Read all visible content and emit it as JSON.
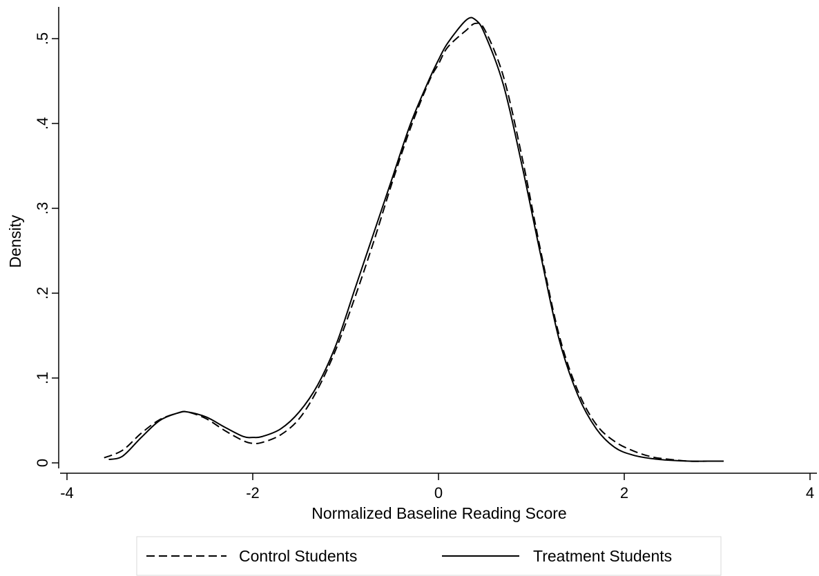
{
  "chart_data": {
    "type": "line",
    "title": "",
    "xlabel": "Normalized Baseline Reading Score",
    "ylabel": "Density",
    "xlim": [
      -4,
      4
    ],
    "ylim": [
      0,
      0.52
    ],
    "x_ticks": [
      -4,
      -2,
      0,
      2,
      4
    ],
    "x_tick_labels": [
      "-4",
      "-2",
      "0",
      "2",
      "4"
    ],
    "y_ticks": [
      0,
      0.1,
      0.2,
      0.3,
      0.4,
      0.5
    ],
    "y_tick_labels": [
      "0",
      ".1",
      ".2",
      ".3",
      ".4",
      ".5"
    ],
    "grid": false,
    "legend_position": "bottom",
    "series": [
      {
        "name": "Control Students",
        "style": "dashed",
        "color": "#000000",
        "x": [
          -3.6,
          -3.4,
          -3.2,
          -3.0,
          -2.8,
          -2.7,
          -2.5,
          -2.3,
          -2.1,
          -2.0,
          -1.9,
          -1.7,
          -1.5,
          -1.3,
          -1.1,
          -0.9,
          -0.7,
          -0.5,
          -0.3,
          -0.1,
          0.0,
          0.1,
          0.3,
          0.4,
          0.5,
          0.7,
          0.9,
          1.1,
          1.3,
          1.5,
          1.7,
          1.9,
          2.1,
          2.3,
          2.5,
          2.7,
          2.9,
          3.1
        ],
        "y": [
          0.006,
          0.015,
          0.035,
          0.051,
          0.059,
          0.06,
          0.052,
          0.038,
          0.026,
          0.023,
          0.024,
          0.033,
          0.052,
          0.087,
          0.135,
          0.195,
          0.26,
          0.33,
          0.395,
          0.45,
          0.47,
          0.49,
          0.51,
          0.518,
          0.51,
          0.455,
          0.36,
          0.25,
          0.15,
          0.085,
          0.045,
          0.025,
          0.014,
          0.007,
          0.004,
          0.002,
          0.002,
          0.002
        ]
      },
      {
        "name": "Treatment Students",
        "style": "solid",
        "color": "#000000",
        "x": [
          -3.55,
          -3.4,
          -3.2,
          -3.0,
          -2.8,
          -2.7,
          -2.5,
          -2.3,
          -2.1,
          -2.0,
          -1.9,
          -1.7,
          -1.5,
          -1.3,
          -1.1,
          -0.9,
          -0.7,
          -0.5,
          -0.3,
          -0.1,
          0.0,
          0.1,
          0.3,
          0.4,
          0.5,
          0.7,
          0.9,
          1.1,
          1.3,
          1.5,
          1.7,
          1.9,
          2.1,
          2.3,
          2.5,
          2.7,
          2.9,
          3.07
        ],
        "y": [
          0.004,
          0.008,
          0.03,
          0.05,
          0.059,
          0.06,
          0.054,
          0.042,
          0.031,
          0.03,
          0.031,
          0.04,
          0.06,
          0.092,
          0.14,
          0.205,
          0.27,
          0.335,
          0.4,
          0.452,
          0.475,
          0.495,
          0.522,
          0.522,
          0.505,
          0.445,
          0.35,
          0.245,
          0.145,
          0.08,
          0.04,
          0.018,
          0.009,
          0.005,
          0.003,
          0.002,
          0.002,
          0.002
        ]
      }
    ]
  }
}
